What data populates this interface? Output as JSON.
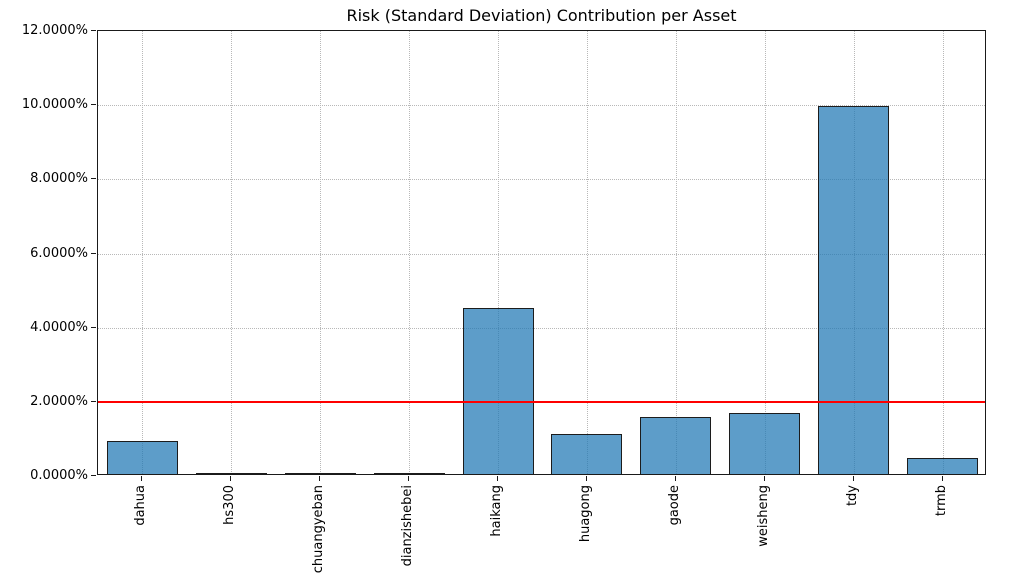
{
  "chart_data": {
    "type": "bar",
    "title": "Risk (Standard Deviation) Contribution per Asset",
    "xlabel": "",
    "ylabel": "",
    "categories": [
      "dahua",
      "hs300",
      "chuangyeban",
      "dianzishebei",
      "haikang",
      "huagong",
      "gaode",
      "weisheng",
      "tdy",
      "trmb"
    ],
    "values": [
      0.89,
      0.01,
      0.01,
      0.01,
      4.47,
      1.08,
      1.54,
      1.64,
      9.93,
      0.44
    ],
    "value_unit": "%",
    "ylim": [
      0,
      12
    ],
    "yticks": [
      0,
      2,
      4,
      6,
      8,
      10,
      12
    ],
    "ytick_labels": [
      "0.0000%",
      "2.0000%",
      "4.0000%",
      "6.0000%",
      "8.0000%",
      "10.0000%",
      "12.0000%"
    ],
    "threshold_line": {
      "value": 2.0,
      "color": "#ff0000"
    },
    "bar_fill_color": "#62a0ca",
    "bar_edge_color": "#1c1c1c",
    "grid": "dotted, both axes",
    "legend": null,
    "xtick_rotation_deg": 90
  }
}
